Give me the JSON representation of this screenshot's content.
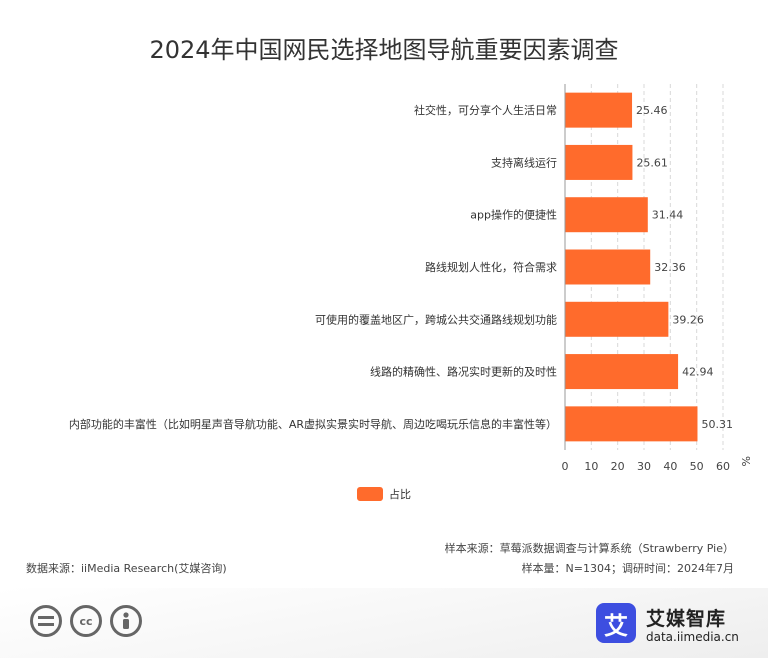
{
  "chart_data": {
    "type": "bar",
    "orientation": "horizontal",
    "title": "2024年中国网民选择地图导航重要因素调查",
    "categories": [
      "社交性，可分享个人生活日常",
      "支持离线运行",
      "app操作的便捷性",
      "路线规划人性化，符合需求",
      "可使用的覆盖地区广，跨城公共交通路线规划功能",
      "线路的精确性、路况实时更新的及时性",
      "内部功能的丰富性（比如明星声音导航功能、AR虚拟实景实时导航、周边吃喝玩乐信息的丰富性等）"
    ],
    "series": [
      {
        "name": "占比",
        "color": "#FF6B2C",
        "values": [
          25.46,
          25.61,
          31.44,
          32.36,
          39.26,
          42.94,
          50.31
        ]
      }
    ],
    "xlim": [
      0,
      60
    ],
    "xticks": [
      "0",
      "10",
      "20",
      "30",
      "40",
      "50",
      "60"
    ],
    "x_unit": "%",
    "grid": "vertical dashed",
    "legend_position": "bottom-center"
  },
  "footer": {
    "source": "数据来源：iiMedia Research(艾媒咨询)",
    "sample_source": "样本来源：草莓派数据调查与计算系统（Strawberry Pie）",
    "sample_info": "样本量：N=1304；调研时间：2024年7月"
  },
  "brand": {
    "logo_glyph": "艾",
    "name": "艾媒智库",
    "url": "data.iimedia.cn"
  },
  "license_icons": [
    "equals-icon",
    "cc-icon",
    "person-icon"
  ]
}
